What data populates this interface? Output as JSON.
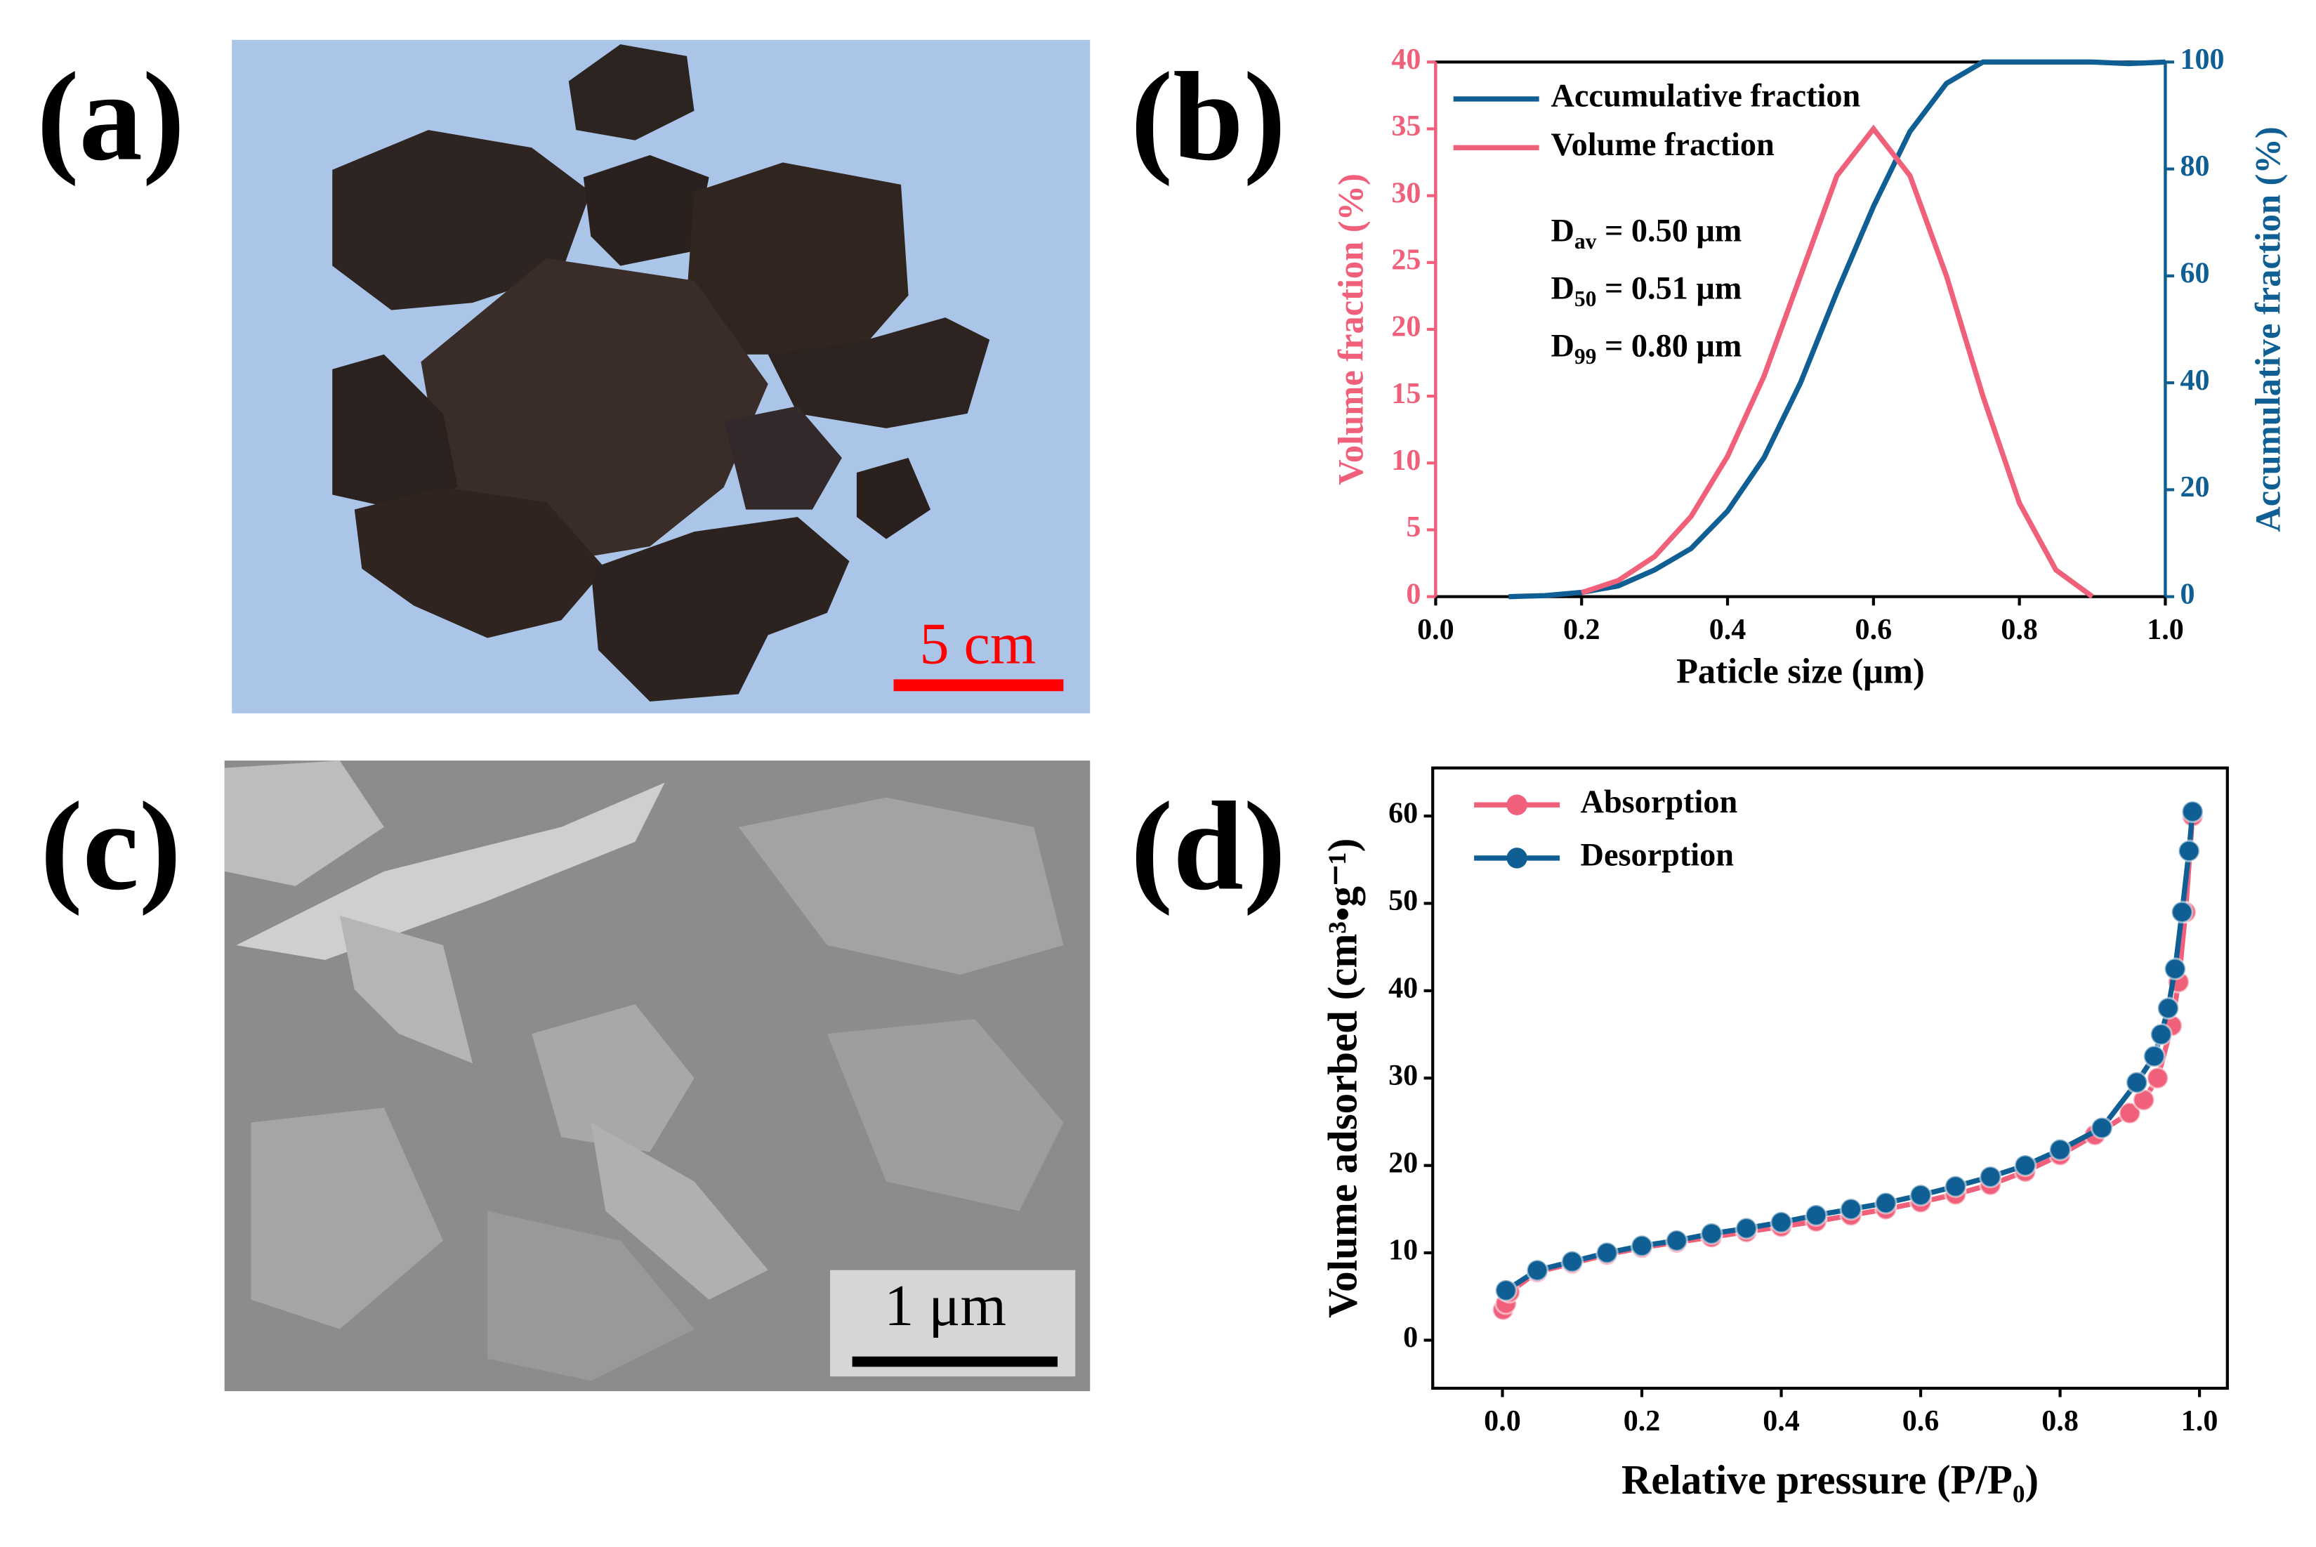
{
  "figure": {
    "panel_labels": [
      "(a)",
      "(b)",
      "(c)",
      "(d)"
    ],
    "scale_bars": [
      "5 cm",
      "1 μm"
    ]
  },
  "chart_data": [
    {
      "type": "line",
      "xlabel": "Paticle size (μm)",
      "ylabel": "Volume fraction (%)",
      "y2label": "Accumulative fraction (%)",
      "x": [
        0.1,
        0.15,
        0.2,
        0.25,
        0.3,
        0.35,
        0.4,
        0.45,
        0.5,
        0.55,
        0.6,
        0.65,
        0.7,
        0.75,
        0.8,
        0.85,
        0.9,
        0.95,
        1.0
      ],
      "series": [
        {
          "name": "Accumulative fraction",
          "color": "#0f5f94",
          "axis": "y2",
          "values": [
            0,
            0.2,
            0.8,
            2,
            5,
            9,
            16,
            26,
            40,
            57,
            73,
            87,
            96,
            100,
            100,
            100,
            100,
            99.7,
            100
          ]
        },
        {
          "name": "Volume fraction",
          "color": "#f0607a",
          "values": [
            null,
            null,
            0.3,
            1.2,
            3,
            6,
            10.5,
            16.5,
            24,
            31.5,
            35,
            31.5,
            24,
            15,
            7,
            2,
            0,
            null,
            null
          ]
        }
      ],
      "annotations": [
        {
          "symbol": "D",
          "subscript": "av",
          "text": " = 0.50 μm"
        },
        {
          "symbol": "D",
          "subscript": "50",
          "text": " = 0.51 μm"
        },
        {
          "symbol": "D",
          "subscript": "99",
          "text": " = 0.80 μm"
        }
      ],
      "xlim": [
        0,
        1
      ],
      "xticks": [
        {
          "value": 0,
          "label": "0.0"
        },
        0.2,
        0.4,
        0.6,
        0.8,
        {
          "value": 1,
          "label": "1.0"
        }
      ],
      "ylim": [
        0,
        40
      ],
      "yticks": [
        0,
        5,
        10,
        15,
        20,
        25,
        30,
        35,
        40
      ],
      "y2lim": [
        0,
        100
      ],
      "y2ticks": [
        0,
        20,
        40,
        60,
        80,
        100
      ],
      "legend": "upper left"
    },
    {
      "type": "line",
      "markers": true,
      "xlabel": "Relative pressure (P/P₀)",
      "ylabel": "Volume adsorbed (cm³•g⁻¹)",
      "series": [
        {
          "name": "Absorption",
          "color": "#f0607a",
          "x": [
            0.001,
            0.005,
            0.01,
            0.05,
            0.1,
            0.15,
            0.2,
            0.25,
            0.3,
            0.35,
            0.4,
            0.45,
            0.5,
            0.55,
            0.6,
            0.65,
            0.7,
            0.75,
            0.8,
            0.85,
            0.9,
            0.92,
            0.94,
            0.96,
            0.97,
            0.98,
            0.99
          ],
          "values": [
            3.5,
            4.2,
            5.5,
            7.8,
            8.8,
            9.8,
            10.6,
            11.2,
            11.8,
            12.4,
            13.0,
            13.6,
            14.3,
            15.0,
            15.8,
            16.7,
            17.8,
            19.3,
            21.2,
            23.5,
            26,
            27.5,
            30,
            36,
            41,
            49,
            60
          ]
        },
        {
          "name": "Desorption",
          "color": "#0f5f94",
          "x": [
            0.99,
            0.985,
            0.975,
            0.965,
            0.955,
            0.945,
            0.935,
            0.91,
            0.86,
            0.8,
            0.75,
            0.7,
            0.65,
            0.6,
            0.55,
            0.5,
            0.45,
            0.4,
            0.35,
            0.3,
            0.25,
            0.2,
            0.15,
            0.1,
            0.05,
            0.005
          ],
          "values": [
            60.5,
            56,
            49,
            42.5,
            38,
            35,
            32.5,
            29.5,
            24.3,
            21.8,
            20,
            18.7,
            17.6,
            16.6,
            15.7,
            15,
            14.3,
            13.5,
            12.8,
            12.2,
            11.4,
            10.8,
            10,
            9.0,
            8,
            5.7
          ]
        }
      ],
      "xlim": [
        -0.1,
        1.04
      ],
      "xticks": [
        {
          "value": 0,
          "label": "0.0"
        },
        0.2,
        0.4,
        0.6,
        0.8,
        {
          "value": 1,
          "label": "1.0"
        }
      ],
      "ylim": [
        -5.5,
        65.5
      ],
      "yticks": [
        0,
        10,
        20,
        30,
        40,
        50,
        60
      ],
      "legend": "upper left"
    }
  ]
}
